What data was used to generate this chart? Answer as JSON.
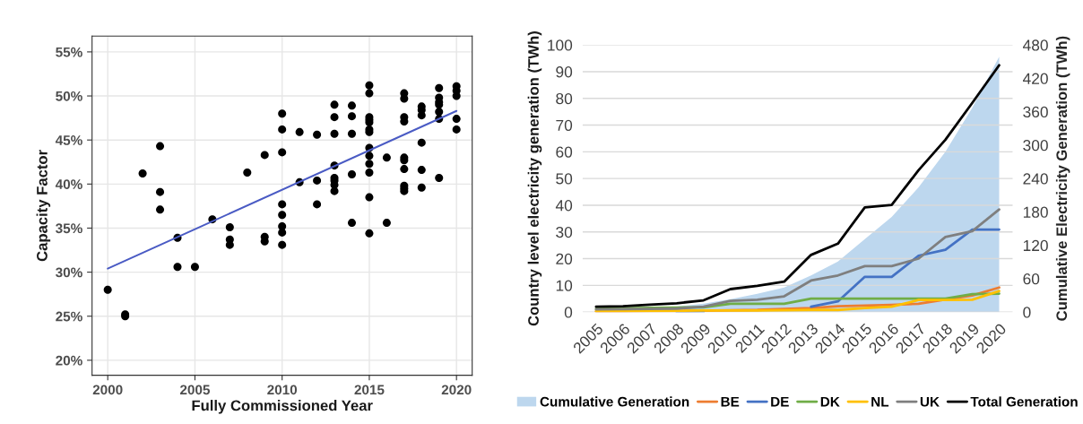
{
  "chart_data": [
    {
      "type": "scatter",
      "xlabel": "Fully Commissioned Year",
      "ylabel": "Capacity Factor",
      "xlim": [
        1999.1,
        2020.9
      ],
      "ylim": [
        18.3,
        56.8
      ],
      "xticks": [
        2000,
        2005,
        2010,
        2015,
        2020
      ],
      "yticks": [
        {
          "value": 20,
          "label": "20%"
        },
        {
          "value": 25,
          "label": "25%"
        },
        {
          "value": 30,
          "label": "30%"
        },
        {
          "value": 35,
          "label": "35%"
        },
        {
          "value": 40,
          "label": "40%"
        },
        {
          "value": 45,
          "label": "45%"
        },
        {
          "value": 50,
          "label": "50%"
        },
        {
          "value": 55,
          "label": "55%"
        }
      ],
      "grid": true,
      "series": [
        {
          "color": "#000000",
          "marker": "circle",
          "x": [
            2000,
            2001,
            2001,
            2002,
            2003,
            2003,
            2003,
            2004,
            2004,
            2005,
            2006,
            2007,
            2007,
            2007,
            2008,
            2009,
            2009,
            2009,
            2010,
            2010,
            2010,
            2010,
            2010,
            2010,
            2010,
            2010,
            2011,
            2011,
            2012,
            2012,
            2012,
            2013,
            2013,
            2013,
            2013,
            2013,
            2013,
            2013,
            2013,
            2014,
            2014,
            2014,
            2014,
            2014,
            2015,
            2015,
            2015,
            2015,
            2015,
            2015,
            2015,
            2015,
            2015,
            2015,
            2015,
            2015,
            2015,
            2016,
            2016,
            2017,
            2017,
            2017,
            2017,
            2017,
            2017,
            2017,
            2017,
            2017,
            2017,
            2018,
            2018,
            2018,
            2018,
            2018,
            2018,
            2019,
            2019,
            2019,
            2019,
            2019,
            2019,
            2019,
            2020,
            2020,
            2020,
            2020,
            2020
          ],
          "values": [
            28.0,
            25.0,
            25.2,
            41.2,
            44.3,
            39.1,
            37.1,
            33.9,
            30.6,
            30.6,
            36.0,
            35.1,
            33.7,
            33.1,
            41.3,
            43.3,
            34.0,
            33.5,
            48.0,
            46.2,
            43.6,
            37.7,
            36.5,
            35.2,
            34.5,
            33.1,
            45.9,
            40.2,
            45.6,
            40.4,
            37.7,
            49.0,
            47.6,
            45.7,
            42.1,
            40.7,
            40.4,
            39.9,
            39.2,
            48.9,
            47.7,
            45.7,
            41.1,
            35.6,
            51.2,
            50.3,
            47.6,
            47.3,
            47.0,
            46.2,
            45.9,
            44.1,
            43.2,
            42.3,
            41.3,
            38.5,
            34.4,
            43.0,
            35.6,
            50.3,
            49.7,
            47.6,
            47.1,
            43.0,
            42.7,
            41.7,
            39.8,
            39.5,
            39.2,
            48.8,
            48.4,
            47.8,
            44.7,
            41.6,
            39.6,
            50.9,
            49.8,
            49.3,
            49.0,
            48.2,
            47.4,
            40.7,
            51.1,
            50.6,
            50.0,
            47.4,
            46.2
          ]
        },
        {
          "type": "line",
          "color": "#4a5bc4",
          "x": [
            2000,
            2020
          ],
          "values": [
            30.4,
            48.3
          ]
        }
      ]
    },
    {
      "type": "line",
      "ylabel": "Country level electricity generation (TWh)",
      "y2label": "Cumulative Electricity Generation (TWh)",
      "categories": [
        "2005",
        "2006",
        "2007",
        "2008",
        "2009",
        "2010",
        "2011",
        "2012",
        "2013",
        "2014",
        "2015",
        "2016",
        "2017",
        "2018",
        "2019",
        "2020"
      ],
      "ylim": [
        0,
        100
      ],
      "yticks": [
        0,
        10,
        20,
        30,
        40,
        50,
        60,
        70,
        80,
        90,
        100
      ],
      "y2lim": [
        0,
        480
      ],
      "y2ticks": [
        0,
        60,
        120,
        180,
        240,
        300,
        360,
        420,
        480
      ],
      "grid": "y",
      "legend": "bottom",
      "series": [
        {
          "name": "Cumulative Generation",
          "type": "area",
          "axis": "y2",
          "color": "#bdd7ee",
          "values": [
            2,
            4,
            7,
            10,
            15,
            23,
            33,
            44,
            66,
            91,
            131,
            171,
            224,
            288,
            367,
            459
          ]
        },
        {
          "name": "BE",
          "color": "#ed7d31",
          "values": [
            0.2,
            0.2,
            0.3,
            0.3,
            0.5,
            0.7,
            0.8,
            1.2,
            1.5,
            2.2,
            2.4,
            2.7,
            3.1,
            4.7,
            6.2,
            9.2
          ]
        },
        {
          "name": "DE",
          "color": "#4472c4",
          "values": [
            null,
            null,
            null,
            0.1,
            0.1,
            null,
            null,
            null,
            2.0,
            4.0,
            13.2,
            13.2,
            21.1,
            23.3,
            30.9,
            30.9
          ]
        },
        {
          "name": "DK",
          "color": "#70ad47",
          "values": [
            1.2,
            1.4,
            1.6,
            1.7,
            1.8,
            3.1,
            3.1,
            3.1,
            5.0,
            5.0,
            5.0,
            5.0,
            5.0,
            5.0,
            6.7,
            6.9
          ]
        },
        {
          "name": "NL",
          "color": "#ffc000",
          "values": [
            0.3,
            0.4,
            0.4,
            0.5,
            0.6,
            0.6,
            0.6,
            0.7,
            0.8,
            0.8,
            1.5,
            2.0,
            4.5,
            4.5,
            4.6,
            7.9
          ]
        },
        {
          "name": "UK",
          "color": "#7f7f7f",
          "values": [
            1.0,
            1.1,
            1.2,
            1.3,
            2.0,
            4.2,
            4.6,
            5.9,
            11.8,
            13.7,
            17.2,
            17.2,
            20.0,
            28.1,
            30.3,
            38.4
          ]
        },
        {
          "name": "Total Generation",
          "color": "#000000",
          "values": [
            2.0,
            2.2,
            2.8,
            3.3,
            4.4,
            8.6,
            9.8,
            11.4,
            21.4,
            25.6,
            39.2,
            40.1,
            53.1,
            64.5,
            78.3,
            92.4
          ]
        }
      ]
    }
  ]
}
